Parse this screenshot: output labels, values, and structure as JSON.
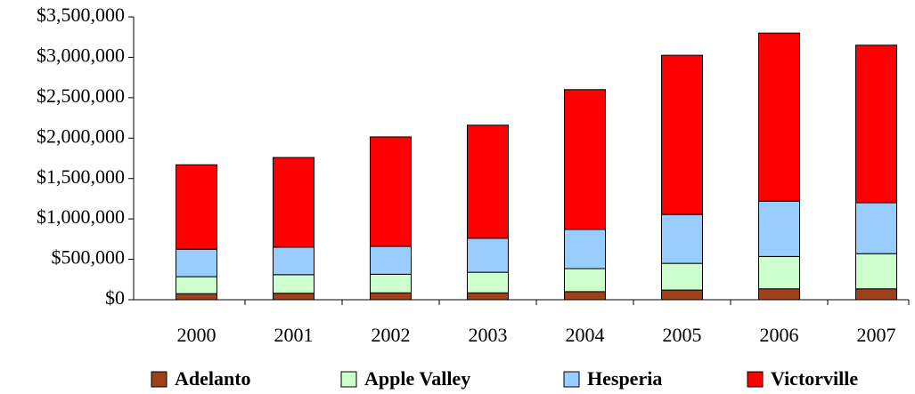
{
  "chart_data": {
    "type": "stacked_bar",
    "categories": [
      "2000",
      "2001",
      "2002",
      "2003",
      "2004",
      "2005",
      "2006",
      "2007"
    ],
    "series": [
      {
        "name": "Adelanto",
        "color": "#a0401a",
        "values": [
          75000,
          80000,
          85000,
          85000,
          100000,
          120000,
          135000,
          135000
        ]
      },
      {
        "name": "Apple Valley",
        "color": "#ccffcc",
        "values": [
          210000,
          230000,
          230000,
          255000,
          285000,
          330000,
          400000,
          435000
        ]
      },
      {
        "name": "Hesperia",
        "color": "#99ccff",
        "values": [
          340000,
          340000,
          345000,
          420000,
          485000,
          605000,
          685000,
          630000
        ]
      },
      {
        "name": "Victorville",
        "color": "#ff0000",
        "values": [
          1045000,
          1110000,
          1355000,
          1400000,
          1730000,
          1970000,
          2080000,
          1950000
        ]
      }
    ],
    "ylim": [
      0,
      3500000
    ],
    "yticks": [
      {
        "value": 0,
        "label": "$0"
      },
      {
        "value": 500000,
        "label": "$500,000"
      },
      {
        "value": 1000000,
        "label": "$1,000,000"
      },
      {
        "value": 1500000,
        "label": "$1,500,000"
      },
      {
        "value": 2000000,
        "label": "$2,000,000"
      },
      {
        "value": 2500000,
        "label": "$2,500,000"
      },
      {
        "value": 3000000,
        "label": "$3,000,000"
      },
      {
        "value": 3500000,
        "label": "$3,500,000"
      }
    ],
    "legend": "bottom"
  }
}
